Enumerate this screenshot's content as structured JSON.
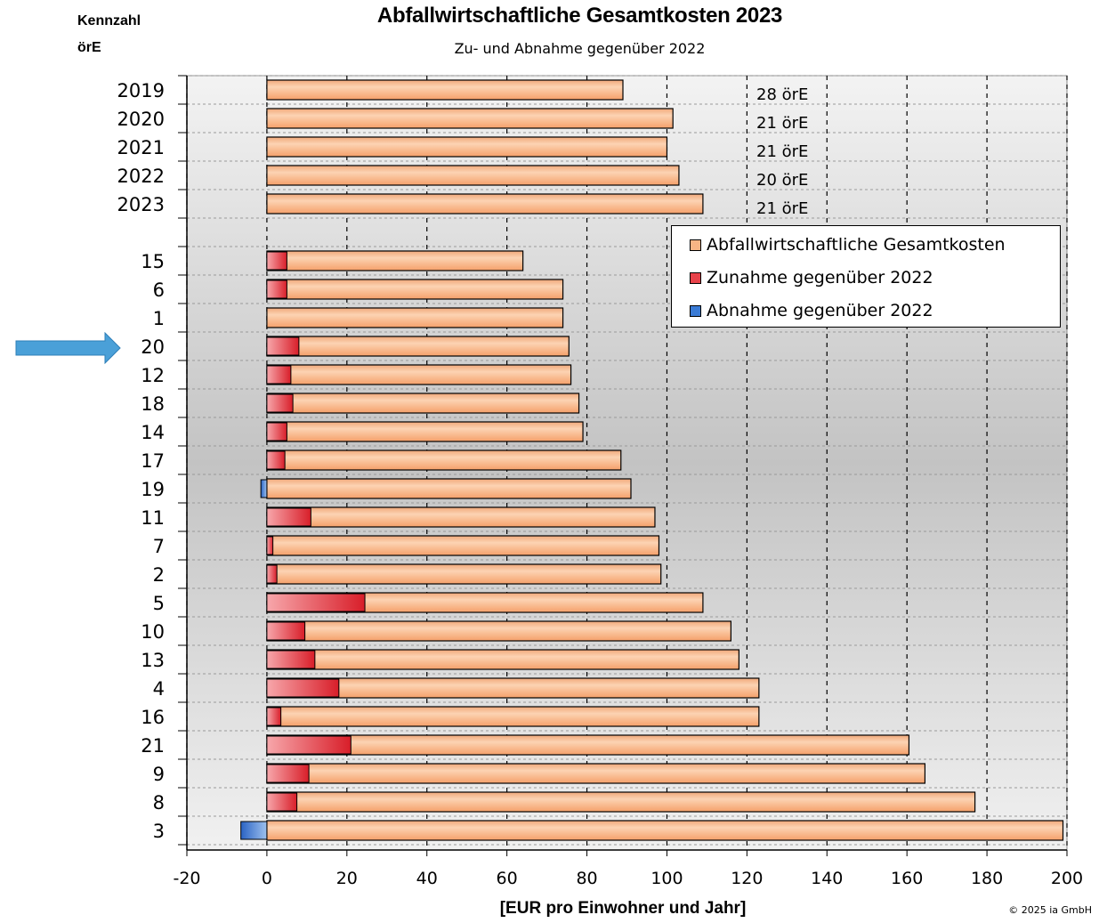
{
  "header": {
    "corner_label_1": "Kennzahl",
    "corner_label_2": "örE",
    "copyright": "© 2025 ia GmbH"
  },
  "colors": {
    "total": "#f7b585",
    "increase": "#e8424a",
    "decrease": "#3a7bd5",
    "arrow": "#4aa0d8",
    "plot_background": "#e6e6e6"
  },
  "chart_data": {
    "type": "bar",
    "orientation": "horizontal",
    "title": "Abfallwirtschaftliche Gesamtkosten 2023",
    "subtitle": "Zu- und Abnahme gegenüber 2022",
    "xlabel": "[EUR pro Einwohner und Jahr]",
    "xlim": [
      -20,
      200
    ],
    "xticks": [
      "-20",
      "0",
      "20",
      "40",
      "60",
      "80",
      "100",
      "120",
      "140",
      "160",
      "180",
      "200"
    ],
    "grid": "vertical dashed",
    "legend_position": "top-right",
    "series": [
      {
        "name": "Abfallwirtschaftliche Gesamtkosten"
      },
      {
        "name": "Zunahme gegenüber 2022"
      },
      {
        "name": "Abnahme gegenüber 2022"
      }
    ],
    "yearly_rows": [
      {
        "label": "2019",
        "total": 89,
        "annotation": "28 örE"
      },
      {
        "label": "2020",
        "total": 101.5,
        "annotation": "21 örE"
      },
      {
        "label": "2021",
        "total": 100,
        "annotation": "21 örE"
      },
      {
        "label": "2022",
        "total": 103,
        "annotation": "20 örE"
      },
      {
        "label": "2023",
        "total": 109,
        "annotation": "21 örE"
      }
    ],
    "rows": [
      {
        "label": "15",
        "total": 64,
        "change": 5
      },
      {
        "label": "6",
        "total": 74,
        "change": 5
      },
      {
        "label": "1",
        "total": 74,
        "change": 0
      },
      {
        "label": "20",
        "total": 75.5,
        "change": 8
      },
      {
        "label": "12",
        "total": 76,
        "change": 6
      },
      {
        "label": "18",
        "total": 78,
        "change": 6.5
      },
      {
        "label": "14",
        "total": 79,
        "change": 5
      },
      {
        "label": "17",
        "total": 88.5,
        "change": 4.5
      },
      {
        "label": "19",
        "total": 91,
        "change": -1.5
      },
      {
        "label": "11",
        "total": 97,
        "change": 11
      },
      {
        "label": "7",
        "total": 98,
        "change": 1.5
      },
      {
        "label": "2",
        "total": 98.5,
        "change": 2.5
      },
      {
        "label": "5",
        "total": 109,
        "change": 24.5
      },
      {
        "label": "10",
        "total": 116,
        "change": 9.5
      },
      {
        "label": "13",
        "total": 118,
        "change": 12
      },
      {
        "label": "4",
        "total": 123,
        "change": 18
      },
      {
        "label": "16",
        "total": 123,
        "change": 3.5
      },
      {
        "label": "21",
        "total": 160.5,
        "change": 21
      },
      {
        "label": "9",
        "total": 164.5,
        "change": 10.5
      },
      {
        "label": "8",
        "total": 177,
        "change": 7.5
      },
      {
        "label": "3",
        "total": 199,
        "change": -6.5
      }
    ],
    "highlighted_row": "20"
  }
}
